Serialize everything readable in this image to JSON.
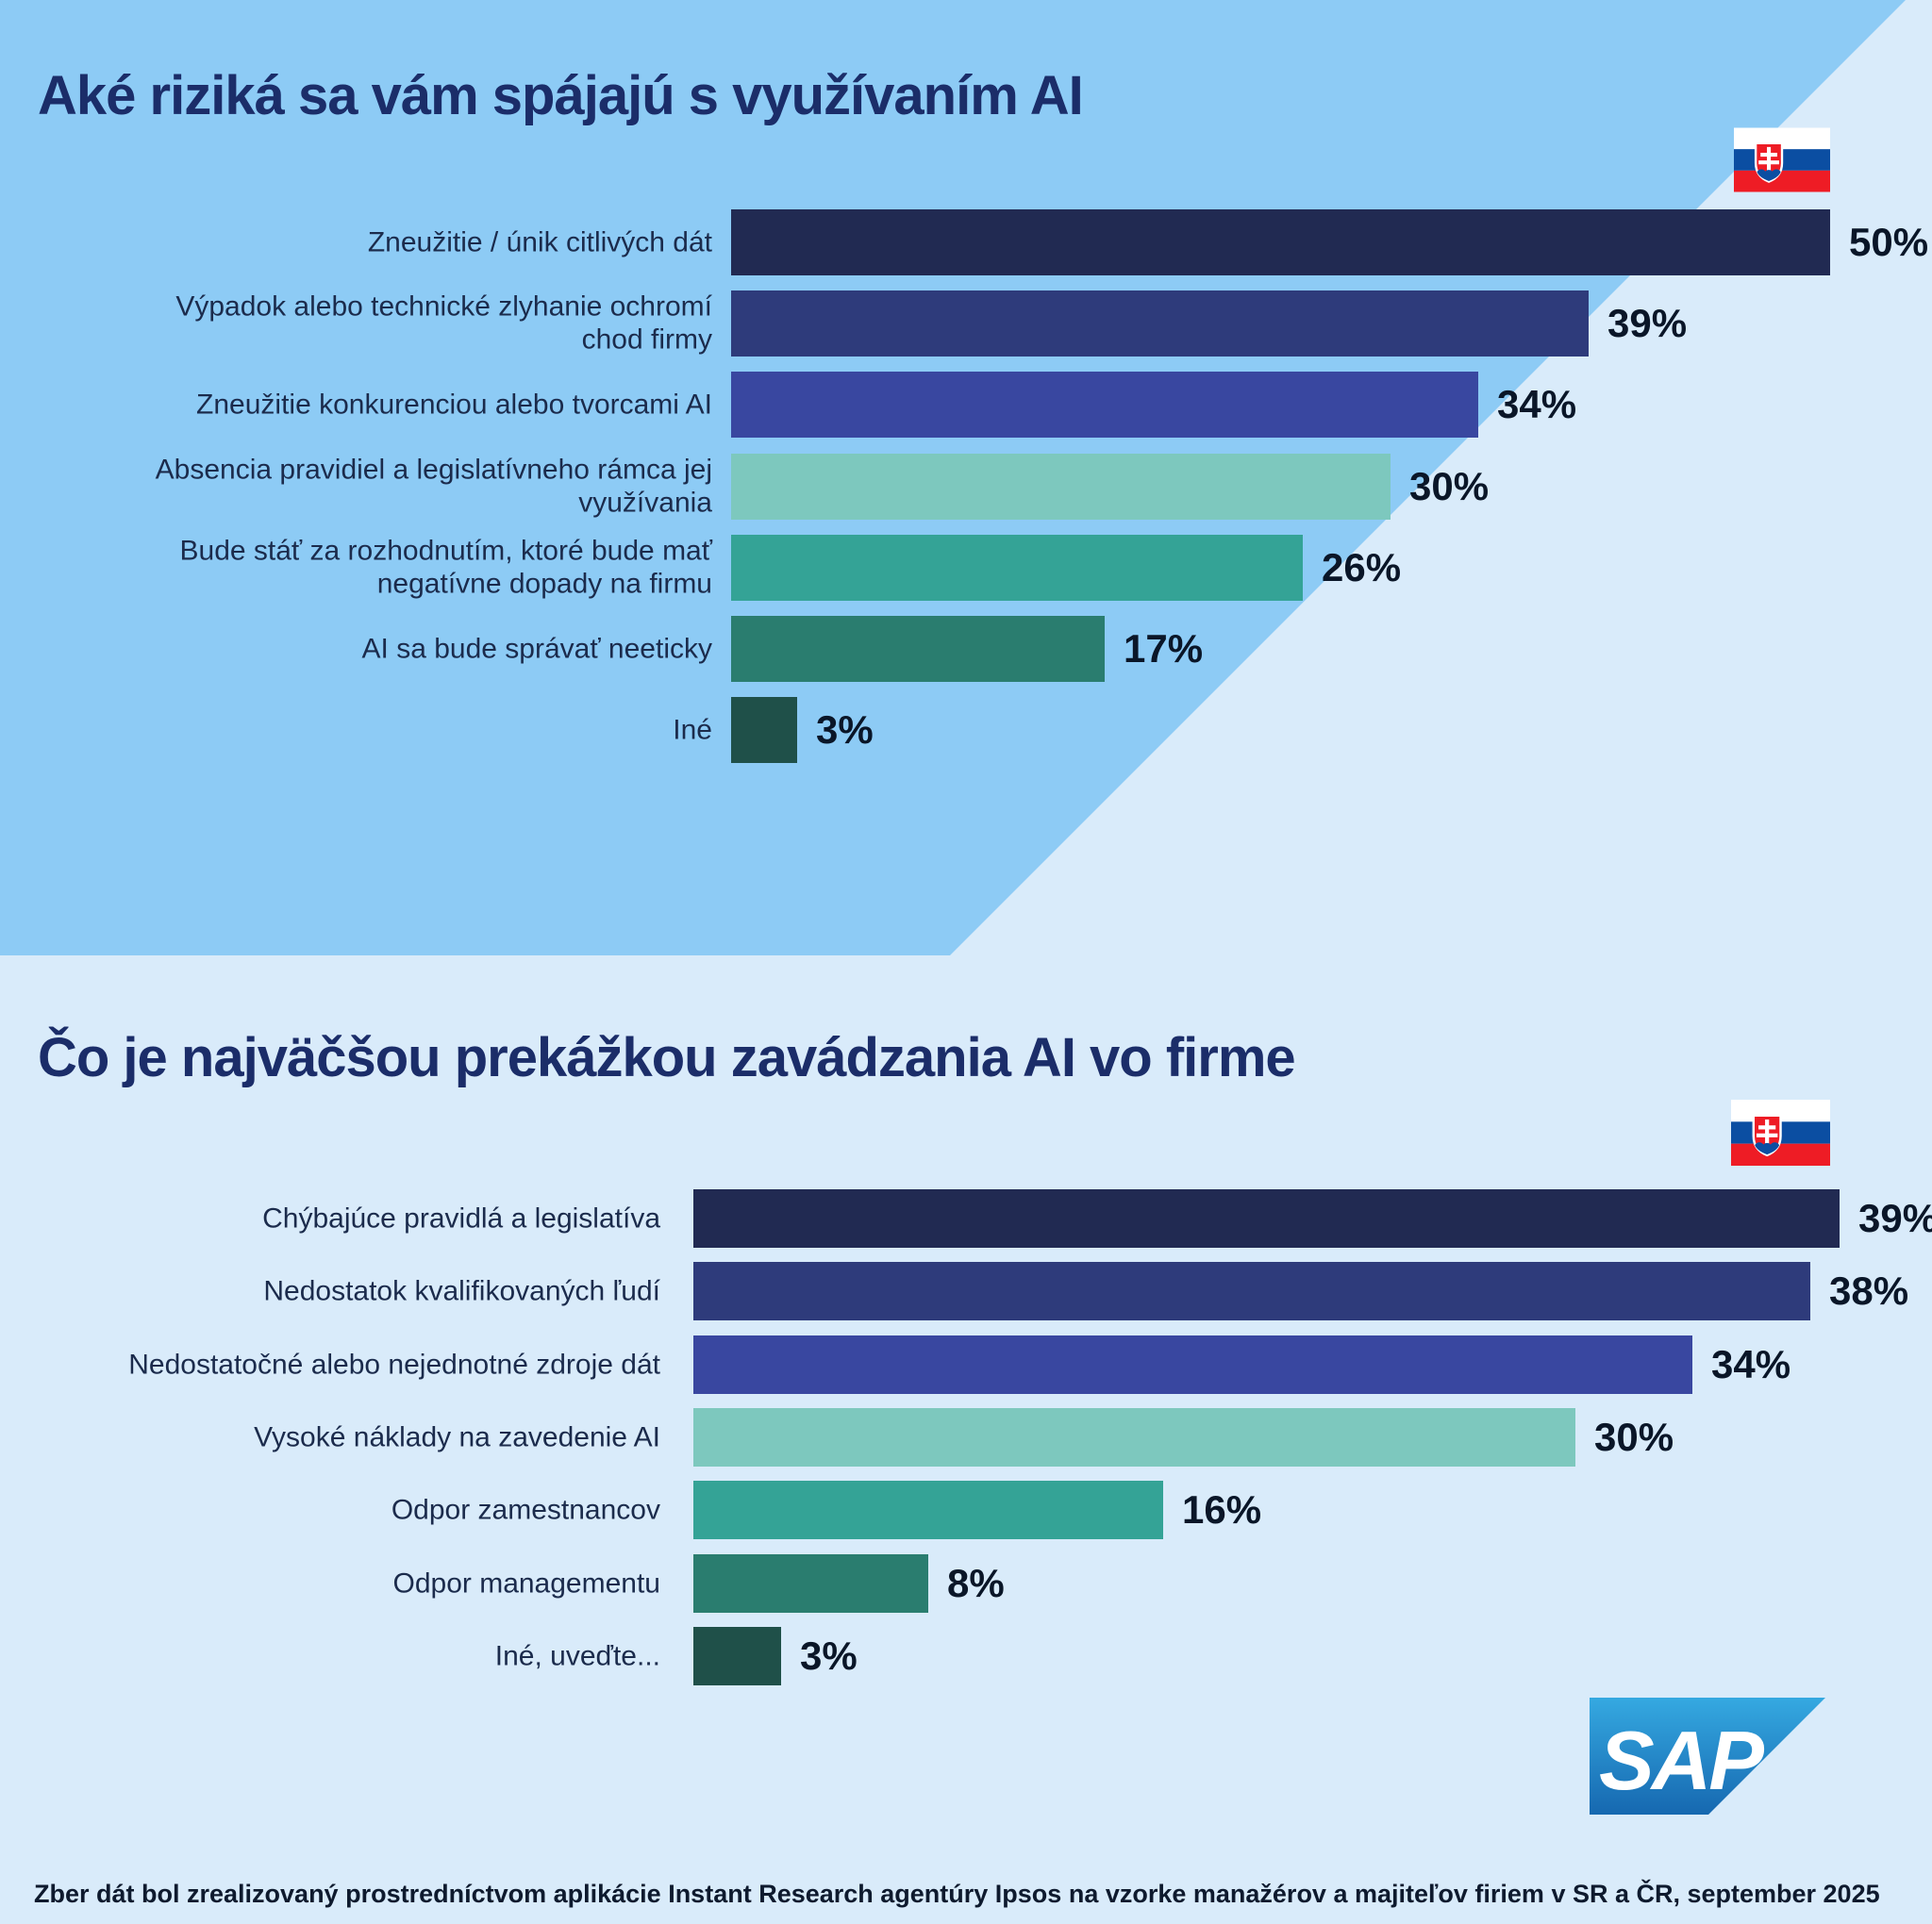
{
  "page": {
    "brand": "SAP",
    "footer": "Zber dát bol zrealizovaný prostredníctvom aplikácie Instant Research agentúry Ipsos na vzorke manažérov a majiteľov firiem v SR a ČR, september 2025",
    "flag_name": "slovakia-flag",
    "background_colors": {
      "top_section": "#8DCBF5",
      "bottom_section": "#D9EBFA"
    },
    "sap_logo_colors": {
      "top": "#35A9E1",
      "bottom": "#1668B0",
      "text": "#FFFFFF"
    },
    "flag_colors": {
      "white": "#FFFFFF",
      "blue": "#0B4EA2",
      "red": "#EE1C25"
    }
  },
  "chart_data": [
    {
      "type": "bar",
      "orientation": "horizontal",
      "title": "Aké riziká sa vám spájajú s využívaním AI",
      "unit": "%",
      "xlim": [
        0,
        50
      ],
      "grid": false,
      "legend": "none",
      "categories": [
        "Zneužitie / únik citlivých dát",
        "Výpadok alebo technické zlyhanie ochromí\nchod firmy",
        "Zneužitie konkurenciou alebo tvorcami AI",
        "Absencia pravidiel a legislatívneho rámca jej\nvyužívania",
        "Bude stáť za rozhodnutím, ktoré bude mať\nnegatívne dopady na firmu",
        "AI sa bude správať neeticky",
        "Iné"
      ],
      "values": [
        50,
        39,
        34,
        30,
        26,
        17,
        3
      ],
      "value_labels": [
        "50%",
        "39%",
        "34%",
        "30%",
        "26%",
        "17%",
        "3%"
      ],
      "bar_colors": [
        "#212A52",
        "#2E3B7B",
        "#3947A0",
        "#7DC8BE",
        "#34A396",
        "#2A7D6F",
        "#1F5049"
      ]
    },
    {
      "type": "bar",
      "orientation": "horizontal",
      "title": "Čo je najväčšou prekážkou zavádzania AI vo firme",
      "unit": "%",
      "xlim": [
        0,
        39
      ],
      "grid": false,
      "legend": "none",
      "categories": [
        "Chýbajúce pravidlá a legislatíva",
        "Nedostatok kvalifikovaných ľudí",
        "Nedostatočné alebo nejednotné zdroje dát",
        "Vysoké náklady na zavedenie AI",
        "Odpor zamestnancov",
        "Odpor managementu",
        "Iné, uveďte..."
      ],
      "values": [
        39,
        38,
        34,
        30,
        16,
        8,
        3
      ],
      "value_labels": [
        "39%",
        "38%",
        "34%",
        "30%",
        "16%",
        "8%",
        "3%"
      ],
      "bar_colors": [
        "#212A52",
        "#2E3B7B",
        "#3947A0",
        "#7DC8BE",
        "#34A396",
        "#2A7D6F",
        "#1F5049"
      ]
    }
  ]
}
